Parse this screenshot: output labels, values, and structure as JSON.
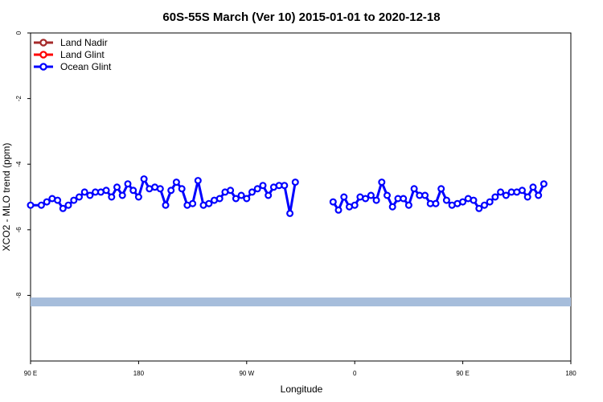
{
  "chart_data": {
    "type": "line",
    "title": "60S-55S March (Ver 10)   2015-01-01 to 2020-12-18",
    "xlabel": "Longitude",
    "ylabel": "XCO2 - MLO trend (ppm)",
    "xlim": [
      0,
      100
    ],
    "ylim": [
      0,
      -10
    ],
    "x_ticks": [
      {
        "pos": 0,
        "label": "90 E"
      },
      {
        "pos": 20,
        "label": "180"
      },
      {
        "pos": 40,
        "label": "90 W"
      },
      {
        "pos": 60,
        "label": "0"
      },
      {
        "pos": 80,
        "label": "90 E"
      },
      {
        "pos": 100,
        "label": "180"
      }
    ],
    "y_ticks": [
      {
        "value": 0,
        "label": "0"
      },
      {
        "value": -2,
        "label": "-2"
      },
      {
        "value": -4,
        "label": "-4"
      },
      {
        "value": -6,
        "label": "-6"
      },
      {
        "value": -8,
        "label": "-8"
      }
    ],
    "grid": false,
    "legend_position": "top-left",
    "legend": [
      {
        "name": "Land Nadir",
        "color": "#a52a2a"
      },
      {
        "name": "Land Glint",
        "color": "#ff0000"
      },
      {
        "name": "Ocean Glint",
        "color": "#0000ff"
      }
    ],
    "band": {
      "y_center": -8.2,
      "color": "#a6bddb"
    },
    "series": [
      {
        "name": "Ocean Glint",
        "color": "#0000ff",
        "segments": [
          [
            [
              0,
              -5.25
            ],
            [
              2,
              -5.25
            ],
            [
              3,
              -5.15
            ],
            [
              4,
              -5.05
            ],
            [
              5,
              -5.1
            ],
            [
              6,
              -5.35
            ],
            [
              7,
              -5.25
            ],
            [
              8,
              -5.1
            ],
            [
              9,
              -5.0
            ],
            [
              10,
              -4.85
            ],
            [
              11,
              -4.95
            ],
            [
              12,
              -4.85
            ],
            [
              13,
              -4.85
            ],
            [
              14,
              -4.8
            ],
            [
              15,
              -5.0
            ],
            [
              16,
              -4.7
            ],
            [
              17,
              -4.95
            ],
            [
              18,
              -4.6
            ],
            [
              19,
              -4.8
            ],
            [
              20,
              -5.0
            ],
            [
              21,
              -4.45
            ],
            [
              22,
              -4.75
            ],
            [
              23,
              -4.7
            ],
            [
              24,
              -4.75
            ],
            [
              25,
              -5.25
            ],
            [
              26,
              -4.8
            ],
            [
              27,
              -4.55
            ],
            [
              28,
              -4.75
            ],
            [
              29,
              -5.25
            ],
            [
              30,
              -5.2
            ],
            [
              31,
              -4.5
            ],
            [
              32,
              -5.25
            ],
            [
              33,
              -5.2
            ],
            [
              34,
              -5.1
            ],
            [
              35,
              -5.05
            ],
            [
              36,
              -4.85
            ],
            [
              37,
              -4.8
            ],
            [
              38,
              -5.05
            ],
            [
              39,
              -4.95
            ],
            [
              40,
              -5.05
            ],
            [
              41,
              -4.85
            ],
            [
              42,
              -4.75
            ],
            [
              43,
              -4.65
            ],
            [
              44,
              -4.95
            ],
            [
              45,
              -4.7
            ],
            [
              46,
              -4.65
            ],
            [
              47,
              -4.65
            ],
            [
              48,
              -5.5
            ],
            [
              49,
              -4.55
            ]
          ],
          [
            [
              56,
              -5.15
            ],
            [
              57,
              -5.4
            ],
            [
              58,
              -5.0
            ],
            [
              59,
              -5.3
            ],
            [
              60,
              -5.25
            ],
            [
              61,
              -5.0
            ],
            [
              62,
              -5.05
            ],
            [
              63,
              -4.95
            ],
            [
              64,
              -5.1
            ],
            [
              65,
              -4.55
            ],
            [
              66,
              -4.95
            ],
            [
              67,
              -5.3
            ],
            [
              68,
              -5.05
            ],
            [
              69,
              -5.05
            ],
            [
              70,
              -5.25
            ],
            [
              71,
              -4.75
            ],
            [
              72,
              -4.95
            ],
            [
              73,
              -4.95
            ],
            [
              74,
              -5.2
            ],
            [
              75,
              -5.2
            ],
            [
              76,
              -4.75
            ],
            [
              77,
              -5.1
            ],
            [
              78,
              -5.25
            ],
            [
              79,
              -5.2
            ],
            [
              80,
              -5.15
            ],
            [
              81,
              -5.05
            ],
            [
              82,
              -5.1
            ],
            [
              83,
              -5.35
            ],
            [
              84,
              -5.25
            ],
            [
              85,
              -5.15
            ],
            [
              86,
              -5.0
            ],
            [
              87,
              -4.85
            ],
            [
              88,
              -4.95
            ],
            [
              89,
              -4.85
            ],
            [
              90,
              -4.85
            ],
            [
              91,
              -4.8
            ],
            [
              92,
              -5.0
            ],
            [
              93,
              -4.7
            ],
            [
              94,
              -4.95
            ],
            [
              95,
              -4.6
            ]
          ]
        ]
      }
    ]
  }
}
